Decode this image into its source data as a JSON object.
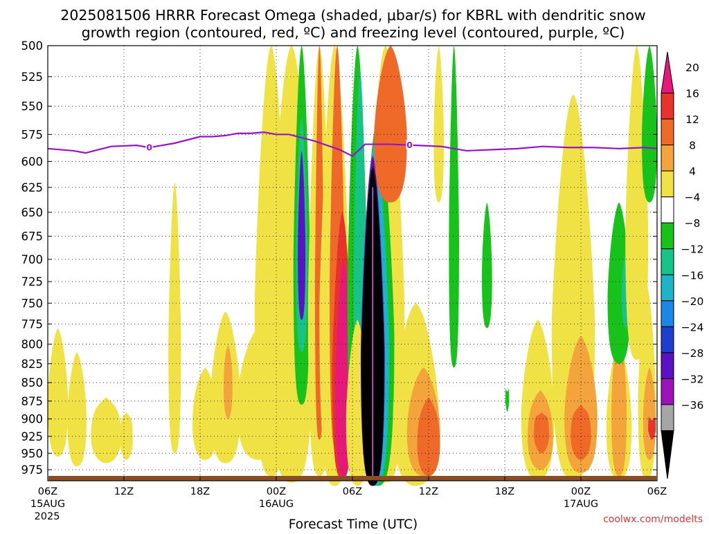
{
  "chart_data": {
    "type": "heatmap",
    "title_line1": "2025081506 HRRR Forecast Omega (shaded, μbar/s) for KBRL with dendritic snow",
    "title_line2": "growth region (contoured, red, ºC) and freezing level (contoured, purple, ºC)",
    "xlabel": "Forecast Time (UTC)",
    "watermark": "coolwx.com/modelts",
    "y_ticks": [
      500,
      525,
      550,
      575,
      600,
      625,
      650,
      675,
      700,
      725,
      750,
      775,
      800,
      825,
      850,
      875,
      900,
      925,
      950,
      975
    ],
    "x_ticks": [
      {
        "hour": 0,
        "label": "06Z",
        "date": "15AUG",
        "year": "2025"
      },
      {
        "hour": 6,
        "label": "12Z"
      },
      {
        "hour": 12,
        "label": "18Z"
      },
      {
        "hour": 18,
        "label": "00Z",
        "date": "16AUG"
      },
      {
        "hour": 24,
        "label": "06Z"
      },
      {
        "hour": 30,
        "label": "12Z"
      },
      {
        "hour": 36,
        "label": "18Z"
      },
      {
        "hour": 42,
        "label": "00Z",
        "date": "17AUG"
      },
      {
        "hour": 48,
        "label": "06Z"
      }
    ],
    "xlim": [
      0,
      48
    ],
    "ylim": [
      500,
      992
    ],
    "y_axis": "pressure (hPa), inverted, log scale",
    "grid": true,
    "colorbar": {
      "placement": "right",
      "labels": [
        "20",
        "16",
        "12",
        "8",
        "4",
        "−4",
        "−8",
        "−12",
        "−16",
        "−20",
        "−24",
        "−28",
        "−32",
        "−36"
      ],
      "colors": [
        "#e6197a",
        "#e8322c",
        "#ef6a29",
        "#f3a43a",
        "#f0e245",
        "#ffffff",
        "#17c21a",
        "#18c38a",
        "#1ab5c8",
        "#1a87e6",
        "#1d3ecf",
        "#5a12c4",
        "#9b12b8",
        "#a6a6a6",
        "#000000"
      ]
    },
    "freezing_level": {
      "color": "#9414c8",
      "label": "0",
      "points": [
        [
          0,
          588
        ],
        [
          2,
          590
        ],
        [
          3,
          592
        ],
        [
          5,
          586
        ],
        [
          7,
          585
        ],
        [
          8,
          587
        ],
        [
          10,
          583
        ],
        [
          12,
          577
        ],
        [
          13,
          577
        ],
        [
          14,
          576
        ],
        [
          15,
          574
        ],
        [
          16,
          574
        ],
        [
          17,
          573
        ],
        [
          18,
          575
        ],
        [
          19,
          575
        ],
        [
          20,
          578
        ],
        [
          21,
          581
        ],
        [
          22,
          585
        ],
        [
          23,
          589
        ],
        [
          24,
          595
        ],
        [
          25,
          584
        ],
        [
          27,
          584
        ],
        [
          29,
          585
        ],
        [
          31,
          586
        ],
        [
          33,
          590
        ],
        [
          35,
          589
        ],
        [
          37,
          588
        ],
        [
          39,
          586
        ],
        [
          41,
          587
        ],
        [
          43,
          587
        ],
        [
          45,
          588
        ],
        [
          47,
          587
        ],
        [
          48,
          588
        ]
      ],
      "label_hours": [
        8,
        28.5
      ]
    },
    "omega_regions": [
      {
        "v": 4,
        "t": [
          [
            16.6,
            500,
            990
          ],
          [
            17.5,
            480,
            990
          ],
          [
            18,
            600,
            990
          ]
        ]
      },
      {
        "v": 4,
        "t": [
          [
            0.5,
            780,
            990
          ],
          [
            1,
            860,
            990
          ],
          [
            1.7,
            880,
            990
          ]
        ]
      },
      {
        "v": -8,
        "t": [
          [
            19.2,
            530,
            880
          ],
          [
            19.8,
            500,
            880
          ],
          [
            20.3,
            540,
            830
          ]
        ]
      },
      {
        "v": -12,
        "t": [
          [
            19.4,
            550,
            820
          ],
          [
            19.9,
            540,
            800
          ],
          [
            20.2,
            560,
            800
          ]
        ]
      },
      {
        "v": -28,
        "t": [
          [
            19.6,
            590,
            760
          ],
          [
            19.9,
            580,
            760
          ],
          [
            20.1,
            610,
            740
          ]
        ]
      }
    ]
  }
}
